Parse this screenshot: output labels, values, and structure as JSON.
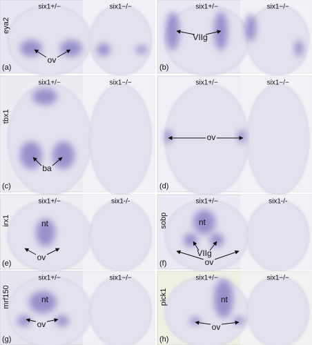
{
  "panels": [
    {
      "letter": "(a)",
      "gene": "eya2",
      "genotypes": [
        "six1+/−",
        "six1−/−"
      ],
      "annotations": [
        "ov"
      ]
    },
    {
      "letter": "(b)",
      "genotypes": [
        "six1+/−",
        "six1−/−"
      ],
      "annotations": [
        "VIIg"
      ]
    },
    {
      "letter": "(c)",
      "gene": "tbx1",
      "genotypes": [
        "six1+/−",
        "six1−/−"
      ],
      "annotations": [
        "ba"
      ]
    },
    {
      "letter": "(d)",
      "genotypes": [
        "six1+/−",
        "six1−/−"
      ],
      "annotations": [
        "ov"
      ]
    },
    {
      "letter": "(e)",
      "gene": "irx1",
      "genotypes": [
        "six1+/−",
        "six1-/-"
      ],
      "annotations": [
        "nt",
        "ov"
      ]
    },
    {
      "letter": "(f)",
      "gene": "sobp",
      "genotypes": [
        "six1+/−",
        "six1-/-"
      ],
      "annotations": [
        "nt",
        "VIIg",
        "ov"
      ]
    },
    {
      "letter": "(g)",
      "gene": "mrf150",
      "genotypes": [
        "six1+/−",
        "six1−/−"
      ],
      "annotations": [
        "nt",
        "ov"
      ]
    },
    {
      "letter": "(h)",
      "gene": "pick1",
      "genotypes": [
        "six1+/−",
        "six1−/−"
      ],
      "annotations": [
        "nt",
        "ov"
      ]
    }
  ]
}
